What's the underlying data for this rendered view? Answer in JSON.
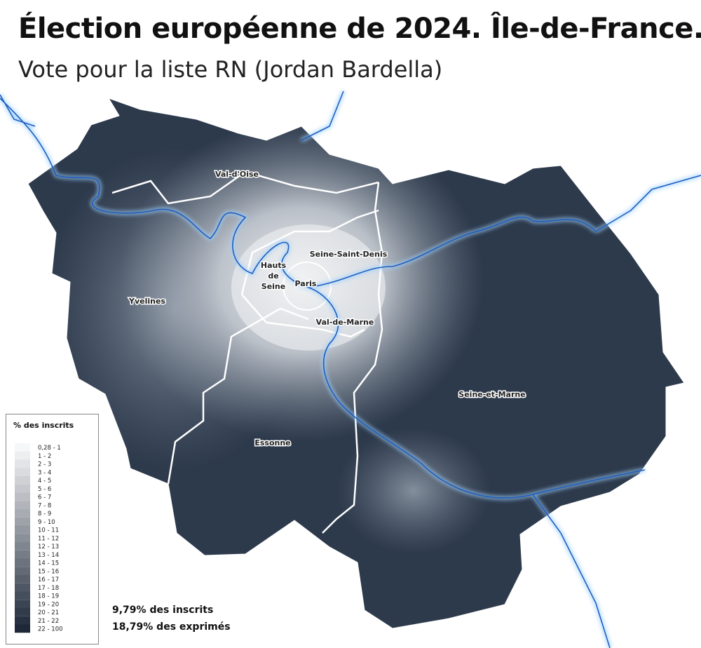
{
  "header": {
    "title": "Élection européenne de 2024. Île-de-France.",
    "subtitle": "Vote pour la liste RN (Jordan Bardella)"
  },
  "map": {
    "labels": [
      {
        "text": "Val-d'Oise"
      },
      {
        "text": "Seine-Saint-Denis"
      },
      {
        "lines": [
          "Hauts",
          "de",
          "Seine"
        ]
      },
      {
        "text": "Paris"
      },
      {
        "text": "Yvelines"
      },
      {
        "text": "Val-de-Marne"
      },
      {
        "text": "Seine-et-Marne"
      },
      {
        "text": "Essonne"
      }
    ]
  },
  "legend": {
    "title": "% des inscrits",
    "classes": [
      "0,28 - 1",
      "1 - 2",
      "2 - 3",
      "3 - 4",
      "4 - 5",
      "5 - 6",
      "6 - 7",
      "7 - 8",
      "8 - 9",
      "9 - 10",
      "10 - 11",
      "11 - 12",
      "12 - 13",
      "13 - 14",
      "14 - 15",
      "15 - 16",
      "16 - 17",
      "17 - 18",
      "18 - 19",
      "19 - 20",
      "20 - 21",
      "21 - 22",
      "22 - 100"
    ]
  },
  "summary": [
    "9,79% des inscrits",
    "18,79% des exprimés"
  ]
}
